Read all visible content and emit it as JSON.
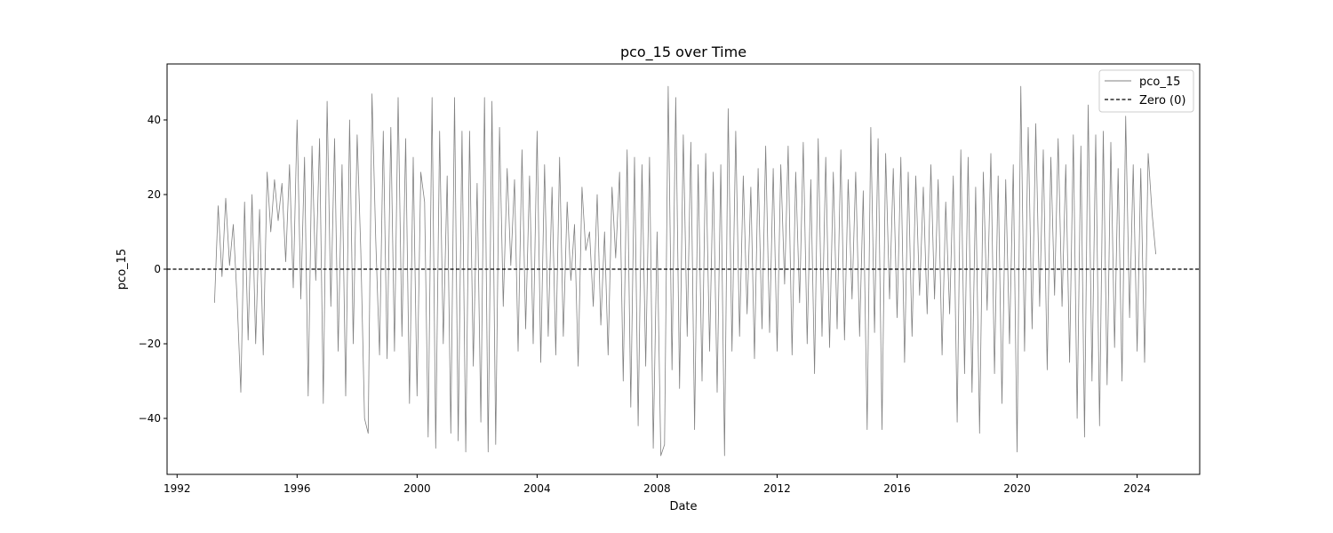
{
  "chart_data": {
    "type": "line",
    "title": "pco_15 over Time",
    "xlabel": "Date",
    "ylabel": "pco_15",
    "xlim": [
      "1991-09-01",
      "2026-02-01"
    ],
    "ylim": [
      -55,
      55
    ],
    "x_ticks": [
      "1992",
      "1996",
      "2000",
      "2004",
      "2008",
      "2012",
      "2016",
      "2020",
      "2024"
    ],
    "y_ticks": [
      -40,
      -20,
      0,
      20,
      40
    ],
    "grid": false,
    "legend": {
      "placement": "top-right",
      "entries": [
        "pco_15",
        "Zero (0)"
      ]
    },
    "colors": {
      "series": "#808080",
      "zero_line": "#000000",
      "axes": "#000000"
    },
    "series": [
      {
        "name": "pco_15",
        "style": "solid",
        "points": [
          [
            "1993-04-01",
            -9
          ],
          [
            "1993-05-15",
            17
          ],
          [
            "1993-07-01",
            -2
          ],
          [
            "1993-08-15",
            19
          ],
          [
            "1993-10-01",
            1
          ],
          [
            "1993-11-15",
            12
          ],
          [
            "1994-01-01",
            -8
          ],
          [
            "1994-02-15",
            -33
          ],
          [
            "1994-04-01",
            18
          ],
          [
            "1994-05-15",
            -19
          ],
          [
            "1994-07-01",
            20
          ],
          [
            "1994-08-15",
            -20
          ],
          [
            "1994-10-01",
            16
          ],
          [
            "1994-11-15",
            -23
          ],
          [
            "1995-01-01",
            26
          ],
          [
            "1995-02-15",
            10
          ],
          [
            "1995-04-01",
            24
          ],
          [
            "1995-05-15",
            13
          ],
          [
            "1995-07-01",
            23
          ],
          [
            "1995-08-15",
            2
          ],
          [
            "1995-10-01",
            28
          ],
          [
            "1995-11-15",
            -5
          ],
          [
            "1996-01-01",
            40
          ],
          [
            "1996-02-15",
            -8
          ],
          [
            "1996-04-01",
            30
          ],
          [
            "1996-05-15",
            -34
          ],
          [
            "1996-07-01",
            33
          ],
          [
            "1996-08-15",
            -3
          ],
          [
            "1996-10-01",
            35
          ],
          [
            "1996-11-15",
            -36
          ],
          [
            "1997-01-01",
            45
          ],
          [
            "1997-02-15",
            -10
          ],
          [
            "1997-04-01",
            35
          ],
          [
            "1997-05-15",
            -22
          ],
          [
            "1997-07-01",
            28
          ],
          [
            "1997-08-15",
            -34
          ],
          [
            "1997-10-01",
            40
          ],
          [
            "1997-11-15",
            -20
          ],
          [
            "1998-01-01",
            36
          ],
          [
            "1998-02-15",
            5
          ],
          [
            "1998-04-01",
            -40
          ],
          [
            "1998-05-15",
            -44
          ],
          [
            "1998-07-01",
            47
          ],
          [
            "1998-08-15",
            8
          ],
          [
            "1998-10-01",
            -23
          ],
          [
            "1998-11-15",
            37
          ],
          [
            "1999-01-01",
            -24
          ],
          [
            "1999-02-15",
            38
          ],
          [
            "1999-04-01",
            -22
          ],
          [
            "1999-05-15",
            46
          ],
          [
            "1999-07-01",
            -18
          ],
          [
            "1999-08-15",
            35
          ],
          [
            "1999-10-01",
            -36
          ],
          [
            "1999-11-15",
            30
          ],
          [
            "2000-01-01",
            -34
          ],
          [
            "2000-02-15",
            26
          ],
          [
            "2000-04-01",
            18
          ],
          [
            "2000-05-15",
            -45
          ],
          [
            "2000-07-01",
            46
          ],
          [
            "2000-08-15",
            -48
          ],
          [
            "2000-10-01",
            37
          ],
          [
            "2000-11-15",
            -20
          ],
          [
            "2001-01-01",
            25
          ],
          [
            "2001-02-15",
            -44
          ],
          [
            "2001-04-01",
            46
          ],
          [
            "2001-05-15",
            -46
          ],
          [
            "2001-07-01",
            37
          ],
          [
            "2001-08-15",
            -49
          ],
          [
            "2001-10-01",
            37
          ],
          [
            "2001-11-15",
            -26
          ],
          [
            "2002-01-01",
            23
          ],
          [
            "2002-02-15",
            -41
          ],
          [
            "2002-04-01",
            46
          ],
          [
            "2002-05-15",
            -49
          ],
          [
            "2002-07-01",
            45
          ],
          [
            "2002-08-15",
            -47
          ],
          [
            "2002-10-01",
            38
          ],
          [
            "2002-11-15",
            -10
          ],
          [
            "2003-01-01",
            27
          ],
          [
            "2003-02-15",
            1
          ],
          [
            "2003-04-01",
            24
          ],
          [
            "2003-05-15",
            -22
          ],
          [
            "2003-07-01",
            32
          ],
          [
            "2003-08-15",
            -16
          ],
          [
            "2003-10-01",
            25
          ],
          [
            "2003-11-15",
            -20
          ],
          [
            "2004-01-01",
            37
          ],
          [
            "2004-02-15",
            -25
          ],
          [
            "2004-04-01",
            28
          ],
          [
            "2004-05-15",
            -18
          ],
          [
            "2004-07-01",
            22
          ],
          [
            "2004-08-15",
            -23
          ],
          [
            "2004-10-01",
            30
          ],
          [
            "2004-11-15",
            -18
          ],
          [
            "2005-01-01",
            18
          ],
          [
            "2005-02-15",
            -3
          ],
          [
            "2005-04-01",
            12
          ],
          [
            "2005-05-15",
            -26
          ],
          [
            "2005-07-01",
            22
          ],
          [
            "2005-08-15",
            5
          ],
          [
            "2005-10-01",
            10
          ],
          [
            "2005-11-15",
            -10
          ],
          [
            "2006-01-01",
            20
          ],
          [
            "2006-02-15",
            -15
          ],
          [
            "2006-04-01",
            10
          ],
          [
            "2006-05-15",
            -23
          ],
          [
            "2006-07-01",
            22
          ],
          [
            "2006-08-15",
            3
          ],
          [
            "2006-10-01",
            26
          ],
          [
            "2006-11-15",
            -30
          ],
          [
            "2007-01-01",
            32
          ],
          [
            "2007-02-15",
            -37
          ],
          [
            "2007-04-01",
            30
          ],
          [
            "2007-05-15",
            -42
          ],
          [
            "2007-07-01",
            28
          ],
          [
            "2007-08-15",
            -26
          ],
          [
            "2007-10-01",
            30
          ],
          [
            "2007-11-15",
            -48
          ],
          [
            "2008-01-01",
            10
          ],
          [
            "2008-02-15",
            -50
          ],
          [
            "2008-04-01",
            -47
          ],
          [
            "2008-05-15",
            49
          ],
          [
            "2008-07-01",
            -27
          ],
          [
            "2008-08-15",
            46
          ],
          [
            "2008-10-01",
            -32
          ],
          [
            "2008-11-15",
            36
          ],
          [
            "2009-01-01",
            -18
          ],
          [
            "2009-02-15",
            34
          ],
          [
            "2009-04-01",
            -43
          ],
          [
            "2009-05-15",
            28
          ],
          [
            "2009-07-01",
            -30
          ],
          [
            "2009-08-15",
            31
          ],
          [
            "2009-10-01",
            -22
          ],
          [
            "2009-11-15",
            26
          ],
          [
            "2010-01-01",
            -33
          ],
          [
            "2010-02-15",
            28
          ],
          [
            "2010-04-01",
            -50
          ],
          [
            "2010-05-15",
            43
          ],
          [
            "2010-07-01",
            -22
          ],
          [
            "2010-08-15",
            37
          ],
          [
            "2010-10-01",
            -18
          ],
          [
            "2010-11-15",
            25
          ],
          [
            "2011-01-01",
            -12
          ],
          [
            "2011-02-15",
            22
          ],
          [
            "2011-04-01",
            -24
          ],
          [
            "2011-05-15",
            27
          ],
          [
            "2011-07-01",
            -16
          ],
          [
            "2011-08-15",
            33
          ],
          [
            "2011-10-01",
            -17
          ],
          [
            "2011-11-15",
            27
          ],
          [
            "2012-01-01",
            -22
          ],
          [
            "2012-02-15",
            28
          ],
          [
            "2012-04-01",
            -4
          ],
          [
            "2012-05-15",
            33
          ],
          [
            "2012-07-01",
            -23
          ],
          [
            "2012-08-15",
            26
          ],
          [
            "2012-10-01",
            -9
          ],
          [
            "2012-11-15",
            34
          ],
          [
            "2013-01-01",
            -20
          ],
          [
            "2013-02-15",
            24
          ],
          [
            "2013-04-01",
            -28
          ],
          [
            "2013-05-15",
            35
          ],
          [
            "2013-07-01",
            -18
          ],
          [
            "2013-08-15",
            30
          ],
          [
            "2013-10-01",
            -21
          ],
          [
            "2013-11-15",
            26
          ],
          [
            "2014-01-01",
            -16
          ],
          [
            "2014-02-15",
            32
          ],
          [
            "2014-04-01",
            -19
          ],
          [
            "2014-05-15",
            24
          ],
          [
            "2014-07-01",
            -8
          ],
          [
            "2014-08-15",
            26
          ],
          [
            "2014-10-01",
            -18
          ],
          [
            "2014-11-15",
            21
          ],
          [
            "2015-01-01",
            -43
          ],
          [
            "2015-02-15",
            38
          ],
          [
            "2015-04-01",
            -17
          ],
          [
            "2015-05-15",
            35
          ],
          [
            "2015-07-01",
            -43
          ],
          [
            "2015-08-15",
            31
          ],
          [
            "2015-10-01",
            -8
          ],
          [
            "2015-11-15",
            27
          ],
          [
            "2016-01-01",
            -13
          ],
          [
            "2016-02-15",
            30
          ],
          [
            "2016-04-01",
            -25
          ],
          [
            "2016-05-15",
            26
          ],
          [
            "2016-07-01",
            -18
          ],
          [
            "2016-08-15",
            25
          ],
          [
            "2016-10-01",
            -7
          ],
          [
            "2016-11-15",
            22
          ],
          [
            "2017-01-01",
            -12
          ],
          [
            "2017-02-15",
            28
          ],
          [
            "2017-04-01",
            -8
          ],
          [
            "2017-05-15",
            24
          ],
          [
            "2017-07-01",
            -23
          ],
          [
            "2017-08-15",
            18
          ],
          [
            "2017-10-01",
            -12
          ],
          [
            "2017-11-15",
            25
          ],
          [
            "2018-01-01",
            -41
          ],
          [
            "2018-02-15",
            32
          ],
          [
            "2018-04-01",
            -28
          ],
          [
            "2018-05-15",
            30
          ],
          [
            "2018-07-01",
            -33
          ],
          [
            "2018-08-15",
            22
          ],
          [
            "2018-10-01",
            -44
          ],
          [
            "2018-11-15",
            26
          ],
          [
            "2019-01-01",
            -11
          ],
          [
            "2019-02-15",
            31
          ],
          [
            "2019-04-01",
            -28
          ],
          [
            "2019-05-15",
            25
          ],
          [
            "2019-07-01",
            -36
          ],
          [
            "2019-08-15",
            24
          ],
          [
            "2019-10-01",
            -20
          ],
          [
            "2019-11-15",
            28
          ],
          [
            "2020-01-01",
            -49
          ],
          [
            "2020-02-15",
            49
          ],
          [
            "2020-04-01",
            -22
          ],
          [
            "2020-05-15",
            38
          ],
          [
            "2020-07-01",
            -16
          ],
          [
            "2020-08-15",
            39
          ],
          [
            "2020-10-01",
            -10
          ],
          [
            "2020-11-15",
            32
          ],
          [
            "2021-01-01",
            -27
          ],
          [
            "2021-02-15",
            30
          ],
          [
            "2021-04-01",
            -7
          ],
          [
            "2021-05-15",
            35
          ],
          [
            "2021-07-01",
            -10
          ],
          [
            "2021-08-15",
            28
          ],
          [
            "2021-10-01",
            -25
          ],
          [
            "2021-11-15",
            36
          ],
          [
            "2022-01-01",
            -40
          ],
          [
            "2022-02-15",
            33
          ],
          [
            "2022-04-01",
            -45
          ],
          [
            "2022-05-15",
            44
          ],
          [
            "2022-07-01",
            -30
          ],
          [
            "2022-08-15",
            36
          ],
          [
            "2022-10-01",
            -42
          ],
          [
            "2022-11-15",
            37
          ],
          [
            "2023-01-01",
            -31
          ],
          [
            "2023-02-15",
            34
          ],
          [
            "2023-04-01",
            -21
          ],
          [
            "2023-05-15",
            27
          ],
          [
            "2023-07-01",
            -30
          ],
          [
            "2023-08-15",
            41
          ],
          [
            "2023-10-01",
            -13
          ],
          [
            "2023-11-15",
            28
          ],
          [
            "2024-01-01",
            -22
          ],
          [
            "2024-02-15",
            27
          ],
          [
            "2024-04-01",
            -25
          ],
          [
            "2024-05-15",
            31
          ],
          [
            "2024-07-01",
            15
          ],
          [
            "2024-08-15",
            4
          ]
        ]
      },
      {
        "name": "Zero (0)",
        "style": "dashed",
        "constant_y": 0
      }
    ]
  }
}
